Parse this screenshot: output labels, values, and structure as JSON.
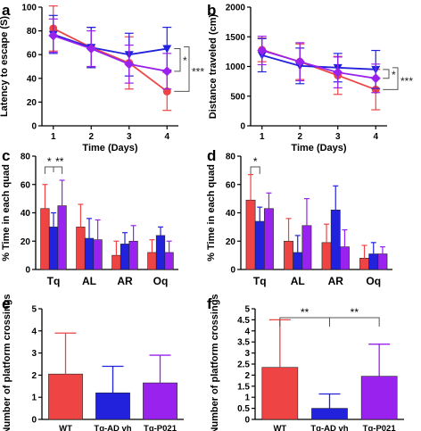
{
  "colors": {
    "wt": "#ee4444",
    "ad": "#2222dd",
    "p021": "#9922ee",
    "axis": "#000000",
    "sig": "#555555"
  },
  "chart_data": [
    {
      "panel": "a",
      "type": "line",
      "xlabel": "Time (Days)",
      "ylabel": "Latency to escape (S)",
      "x": [
        1,
        2,
        3,
        4
      ],
      "ylim": [
        0,
        100
      ],
      "yticks": [
        0,
        20,
        40,
        60,
        80,
        100
      ],
      "series": [
        {
          "color": "#ee4444",
          "marker": "circle",
          "values": [
            82,
            66,
            53,
            29
          ],
          "err": [
            19,
            17,
            22,
            16
          ]
        },
        {
          "color": "#2222dd",
          "marker": "down-triangle",
          "values": [
            77,
            66,
            60,
            65
          ],
          "err": [
            16,
            17,
            18,
            18
          ]
        },
        {
          "color": "#9922ee",
          "marker": "diamond",
          "values": [
            76,
            65,
            52,
            46
          ],
          "err": [
            14,
            15,
            16,
            15
          ]
        }
      ],
      "significance": [
        {
          "label": "*"
        },
        {
          "label": "***"
        }
      ]
    },
    {
      "panel": "b",
      "type": "line",
      "xlabel": "Time (Days)",
      "ylabel": "Distance traveled (cm)",
      "x": [
        1,
        2,
        3,
        4
      ],
      "ylim": [
        0,
        2000
      ],
      "yticks": [
        0,
        500,
        1000,
        1500,
        2000
      ],
      "series": [
        {
          "color": "#ee4444",
          "marker": "circle",
          "values": [
            1280,
            1080,
            850,
            610
          ],
          "err": [
            200,
            300,
            320,
            340
          ]
        },
        {
          "color": "#2222dd",
          "marker": "down-triangle",
          "values": [
            1190,
            1010,
            980,
            950
          ],
          "err": [
            280,
            300,
            240,
            320
          ]
        },
        {
          "color": "#9922ee",
          "marker": "diamond",
          "values": [
            1270,
            1080,
            900,
            800
          ],
          "err": [
            240,
            320,
            260,
            240
          ]
        }
      ],
      "significance": [
        {
          "label": "*"
        },
        {
          "label": "***"
        }
      ]
    },
    {
      "panel": "c",
      "type": "bar",
      "ylabel": "% Time in each quad",
      "categories": [
        "Tq",
        "AL",
        "AR",
        "Oq"
      ],
      "ylim": [
        0,
        80
      ],
      "yticks": [
        0,
        20,
        40,
        60,
        80
      ],
      "series": [
        {
          "color": "#ee4444",
          "values": [
            43,
            30,
            10,
            12
          ],
          "err": [
            17,
            16,
            10,
            9
          ]
        },
        {
          "color": "#2222dd",
          "values": [
            30,
            22,
            18,
            24
          ],
          "err": [
            10,
            14,
            8,
            6
          ]
        },
        {
          "color": "#9922ee",
          "values": [
            45,
            21,
            20,
            12
          ],
          "err": [
            18,
            14,
            11,
            8
          ]
        }
      ],
      "significance": [
        {
          "label": "*"
        },
        {
          "label": "**"
        }
      ]
    },
    {
      "panel": "d",
      "type": "bar",
      "ylabel": "% Time in each quad",
      "categories": [
        "Tq",
        "AL",
        "AR",
        "Oq"
      ],
      "ylim": [
        0,
        80
      ],
      "yticks": [
        0,
        20,
        40,
        60,
        80
      ],
      "series": [
        {
          "color": "#ee4444",
          "values": [
            49,
            20,
            19,
            8
          ],
          "err": [
            18,
            16,
            13,
            9
          ]
        },
        {
          "color": "#2222dd",
          "values": [
            34,
            12,
            42,
            11
          ],
          "err": [
            10,
            12,
            17,
            8
          ]
        },
        {
          "color": "#9922ee",
          "values": [
            43,
            31,
            16,
            11
          ],
          "err": [
            11,
            19,
            12,
            5
          ]
        }
      ],
      "significance": [
        {
          "label": "*"
        }
      ]
    },
    {
      "panel": "e",
      "type": "bar",
      "ylabel": "Number of platform crossings",
      "categories": [
        "WT",
        "Tg-AD vh",
        "Tg-P021"
      ],
      "colors": [
        "#ee4444",
        "#2222dd",
        "#9922ee"
      ],
      "values": [
        2.05,
        1.2,
        1.65
      ],
      "err": [
        1.85,
        1.2,
        1.25
      ],
      "ylim": [
        0,
        5
      ],
      "yticks": [
        0,
        1,
        2,
        3,
        4,
        5
      ]
    },
    {
      "panel": "f",
      "type": "bar",
      "ylabel": "Number of platform crossings",
      "categories": [
        "WT",
        "Tg-AD vh",
        "Tg-P021"
      ],
      "colors": [
        "#ee4444",
        "#2222dd",
        "#9922ee"
      ],
      "values": [
        2.35,
        0.5,
        1.95
      ],
      "err": [
        2.15,
        0.65,
        1.45
      ],
      "ylim": [
        0,
        5
      ],
      "yticks": [
        0,
        0.5,
        1,
        1.5,
        2,
        2.5,
        3,
        3.5,
        4,
        4.5,
        5
      ],
      "significance": [
        {
          "label": "**"
        },
        {
          "label": "**"
        }
      ]
    }
  ]
}
